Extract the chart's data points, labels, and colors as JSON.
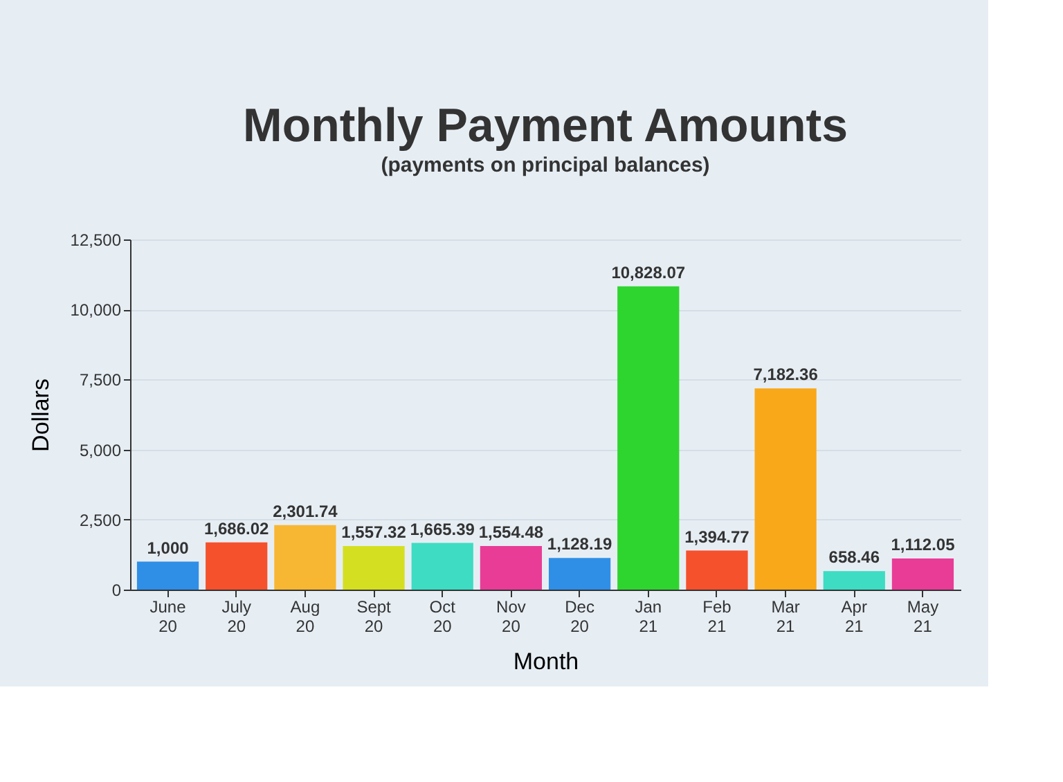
{
  "chart_data": {
    "type": "bar",
    "title": "Monthly Payment Amounts",
    "subtitle": "(payments on principal balances)",
    "xlabel": "Month",
    "ylabel": "Dollars",
    "categories": [
      "June 20",
      "July 20",
      "Aug 20",
      "Sept 20",
      "Oct 20",
      "Nov 20",
      "Dec 20",
      "Jan 21",
      "Feb 21",
      "Mar 21",
      "Apr 21",
      "May 21"
    ],
    "values": [
      1000,
      1686.02,
      2301.74,
      1557.32,
      1665.39,
      1554.48,
      1128.19,
      10828.07,
      1394.77,
      7182.36,
      658.46,
      1112.05
    ],
    "value_labels": [
      "1,000",
      "1,686.02",
      "2,301.74",
      "1,557.32",
      "1,665.39",
      "1,554.48",
      "1,128.19",
      "10,828.07",
      "1,394.77",
      "7,182.36",
      "658.46",
      "1,112.05"
    ],
    "colors": [
      "#2f8fe6",
      "#f5512c",
      "#f8b733",
      "#d5df22",
      "#3ddcc3",
      "#e83c97",
      "#2f8fe6",
      "#2fd52f",
      "#f5512c",
      "#f9a81a",
      "#3ddcc3",
      "#e83c97"
    ],
    "ylim": [
      0,
      12500
    ],
    "yticks": [
      0,
      {
        "value": 2500,
        "label": "2,500"
      },
      {
        "value": 5000,
        "label": "5,000"
      },
      {
        "value": 7500,
        "label": "7,500"
      },
      {
        "value": 10000,
        "label": "10,000"
      },
      {
        "value": 12500,
        "label": "12,500"
      }
    ],
    "grid": "y"
  }
}
